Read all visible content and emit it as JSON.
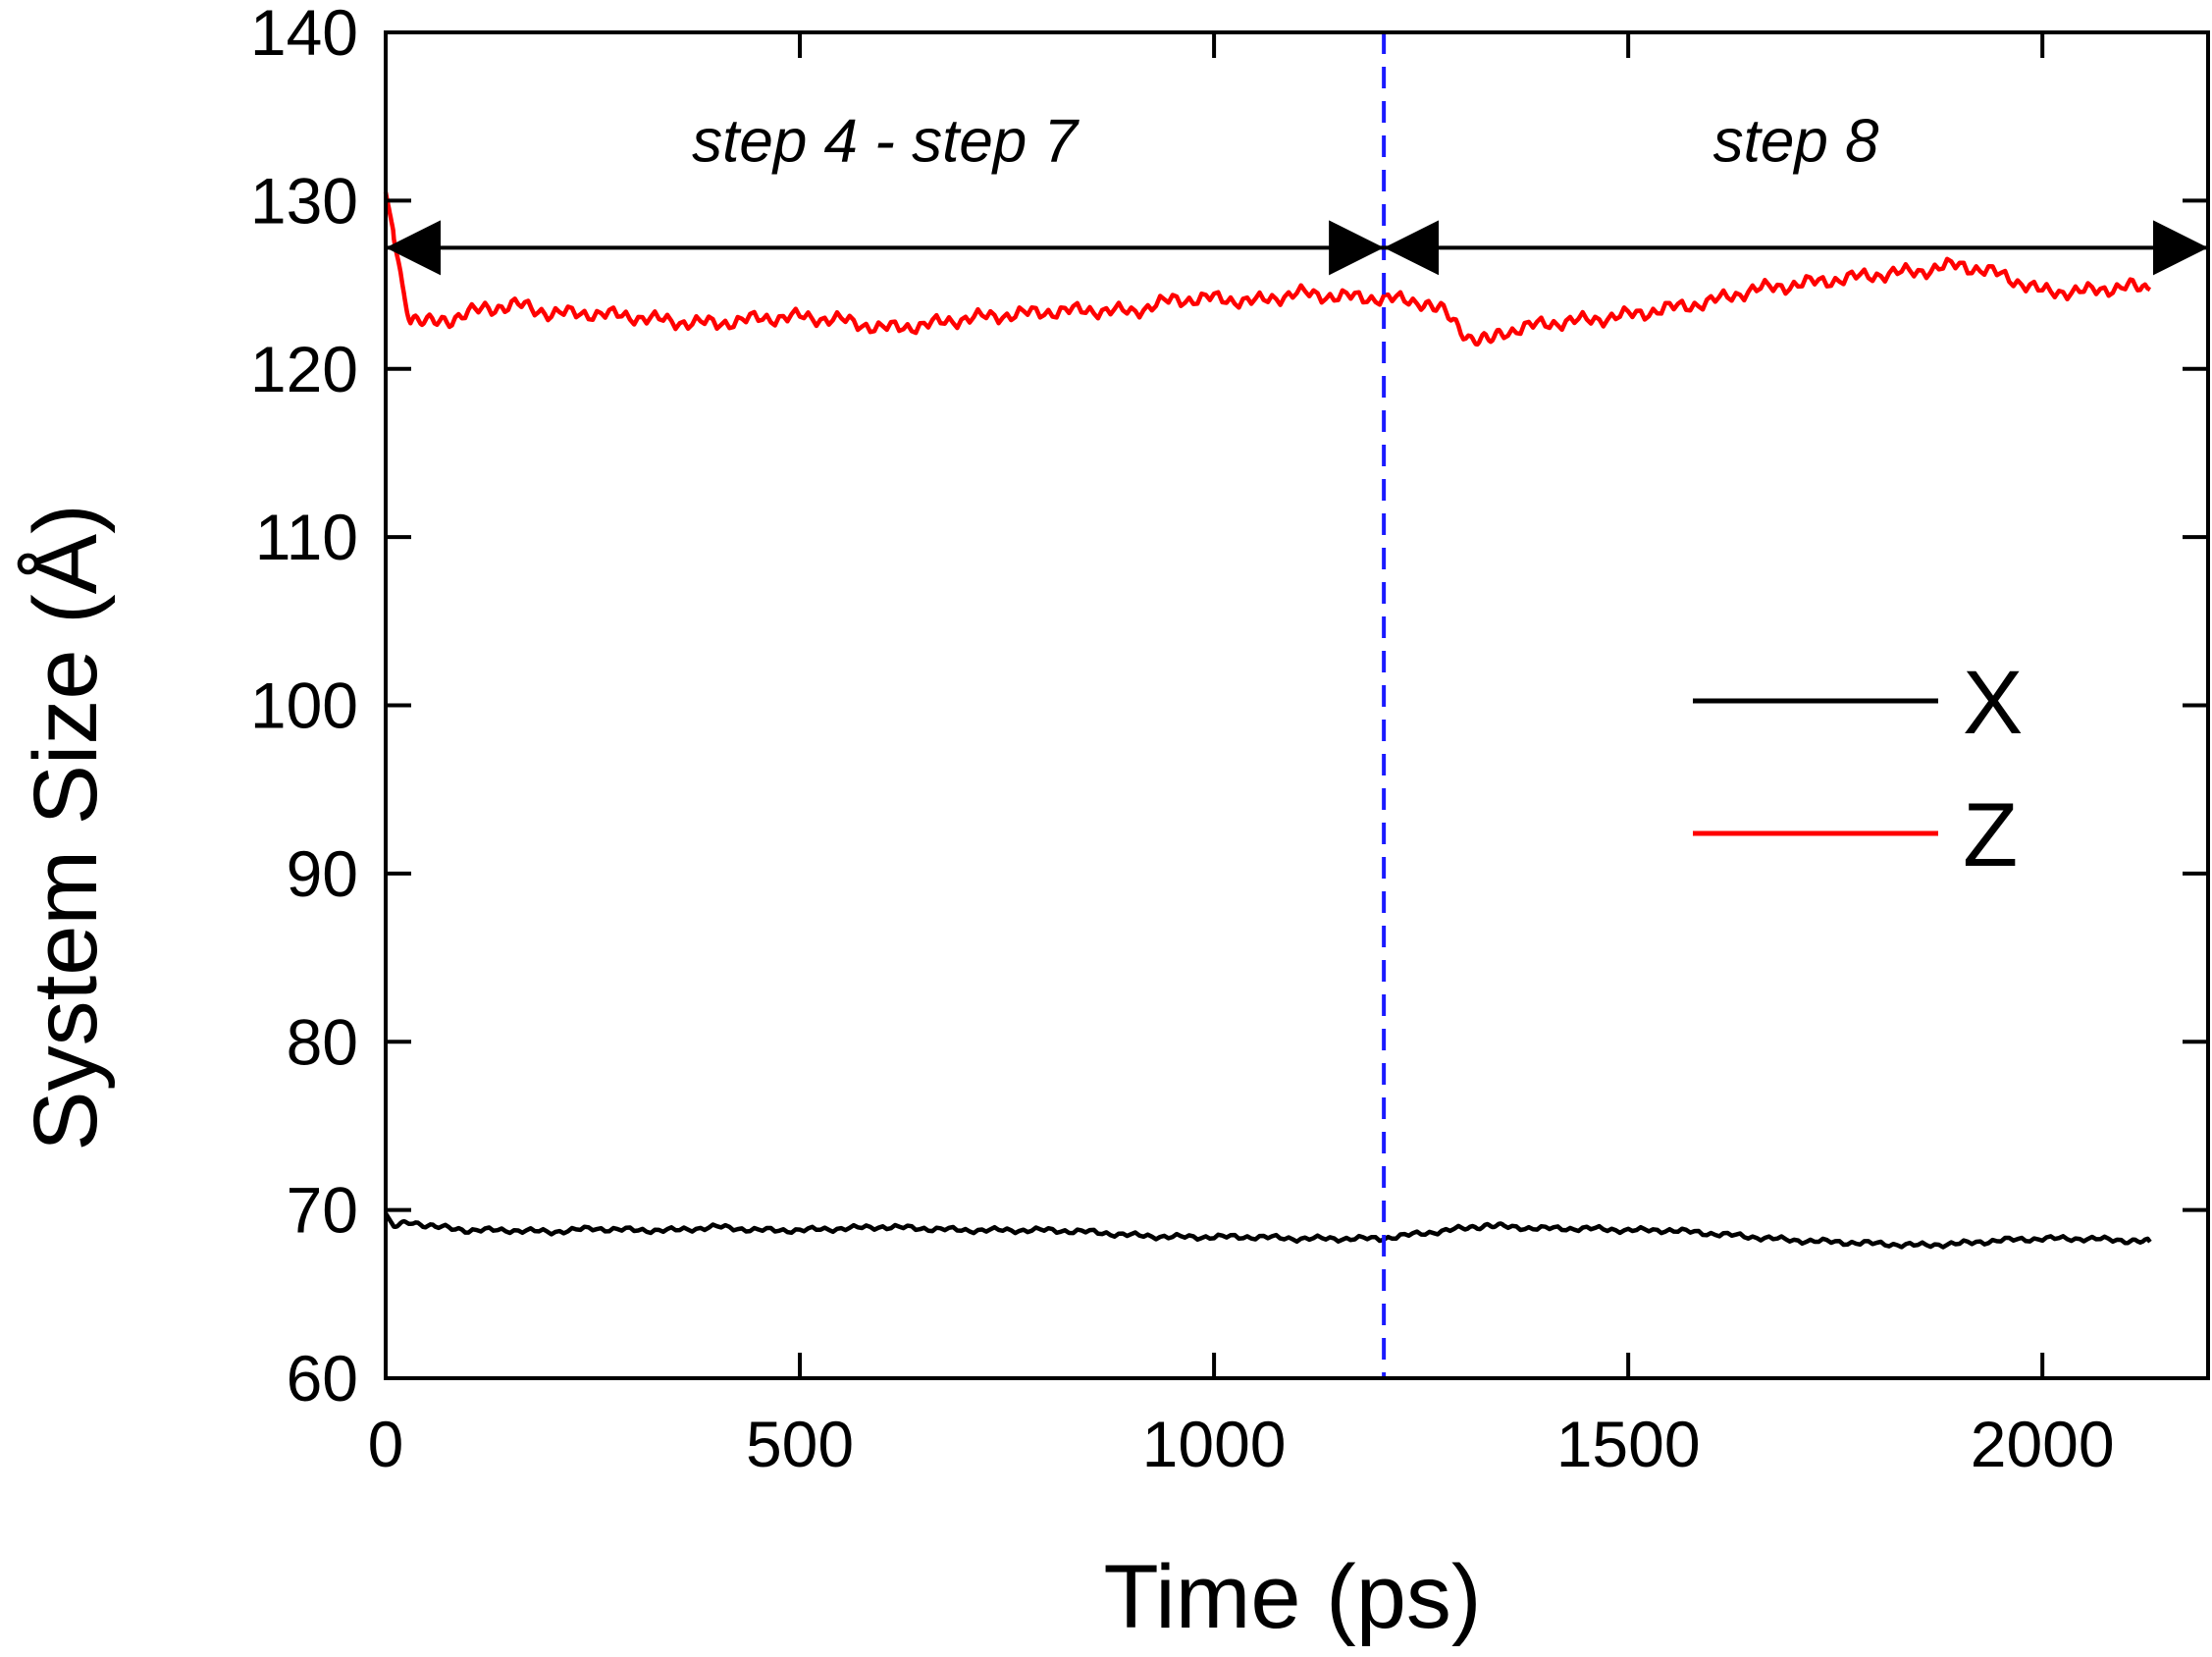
{
  "chart_data": {
    "type": "line",
    "xlabel": "Time (ps)",
    "ylabel": "System Size (Å)",
    "xlim": [
      0,
      2200
    ],
    "ylim": [
      60,
      140
    ],
    "xticks": [
      0,
      500,
      1000,
      1500,
      2000
    ],
    "xtick_labels": [
      "0",
      "500",
      "1000",
      "1500",
      "2000"
    ],
    "yticks": [
      60,
      70,
      80,
      90,
      100,
      110,
      120,
      130,
      140
    ],
    "ytick_labels": [
      "60",
      "70",
      "80",
      "90",
      "100",
      "110",
      "120",
      "130",
      "140"
    ],
    "grid": false,
    "legend_position": "right-middle",
    "series": [
      {
        "name": "X",
        "color": "#000000",
        "points": [
          [
            0,
            69.8
          ],
          [
            10,
            69.0
          ],
          [
            30,
            69.3
          ],
          [
            60,
            69.0
          ],
          [
            100,
            68.8
          ],
          [
            150,
            68.8
          ],
          [
            200,
            68.7
          ],
          [
            250,
            68.9
          ],
          [
            300,
            68.8
          ],
          [
            350,
            68.8
          ],
          [
            400,
            69.0
          ],
          [
            450,
            68.8
          ],
          [
            500,
            68.8
          ],
          [
            550,
            68.9
          ],
          [
            600,
            69.0
          ],
          [
            650,
            68.9
          ],
          [
            700,
            68.8
          ],
          [
            750,
            68.8
          ],
          [
            800,
            68.8
          ],
          [
            850,
            68.7
          ],
          [
            900,
            68.5
          ],
          [
            950,
            68.4
          ],
          [
            1000,
            68.4
          ],
          [
            1050,
            68.4
          ],
          [
            1100,
            68.3
          ],
          [
            1150,
            68.3
          ],
          [
            1200,
            68.3
          ],
          [
            1250,
            68.6
          ],
          [
            1300,
            68.9
          ],
          [
            1330,
            69.1
          ],
          [
            1350,
            69.0
          ],
          [
            1400,
            68.9
          ],
          [
            1450,
            68.9
          ],
          [
            1500,
            68.8
          ],
          [
            1550,
            68.8
          ],
          [
            1600,
            68.6
          ],
          [
            1650,
            68.4
          ],
          [
            1700,
            68.2
          ],
          [
            1750,
            68.1
          ],
          [
            1800,
            68.0
          ],
          [
            1850,
            67.9
          ],
          [
            1900,
            68.0
          ],
          [
            1950,
            68.2
          ],
          [
            2000,
            68.3
          ],
          [
            2050,
            68.3
          ],
          [
            2100,
            68.2
          ],
          [
            2130,
            68.1
          ]
        ]
      },
      {
        "name": "Z",
        "color": "#ff0000",
        "points": [
          [
            0,
            130.5
          ],
          [
            10,
            128.0
          ],
          [
            20,
            125.0
          ],
          [
            30,
            123.0
          ],
          [
            50,
            122.7
          ],
          [
            80,
            123.0
          ],
          [
            120,
            123.6
          ],
          [
            160,
            123.8
          ],
          [
            200,
            123.3
          ],
          [
            250,
            123.3
          ],
          [
            300,
            123.1
          ],
          [
            350,
            122.8
          ],
          [
            400,
            122.7
          ],
          [
            450,
            123.0
          ],
          [
            500,
            123.1
          ],
          [
            550,
            122.9
          ],
          [
            600,
            122.4
          ],
          [
            650,
            122.6
          ],
          [
            700,
            123.0
          ],
          [
            750,
            123.2
          ],
          [
            800,
            123.4
          ],
          [
            850,
            123.5
          ],
          [
            900,
            123.4
          ],
          [
            950,
            124.1
          ],
          [
            1000,
            124.2
          ],
          [
            1050,
            124.0
          ],
          [
            1100,
            124.5
          ],
          [
            1150,
            124.3
          ],
          [
            1200,
            124.2
          ],
          [
            1250,
            124.0
          ],
          [
            1280,
            123.3
          ],
          [
            1310,
            121.8
          ],
          [
            1330,
            121.6
          ],
          [
            1350,
            122.2
          ],
          [
            1400,
            122.7
          ],
          [
            1450,
            122.9
          ],
          [
            1500,
            123.2
          ],
          [
            1550,
            123.6
          ],
          [
            1600,
            124.0
          ],
          [
            1650,
            124.7
          ],
          [
            1700,
            125.0
          ],
          [
            1750,
            125.3
          ],
          [
            1800,
            125.6
          ],
          [
            1850,
            125.8
          ],
          [
            1900,
            126.2
          ],
          [
            1950,
            125.6
          ],
          [
            2000,
            124.6
          ],
          [
            2050,
            124.6
          ],
          [
            2100,
            124.9
          ],
          [
            2130,
            124.7
          ]
        ]
      }
    ],
    "vertical_marker": {
      "x": 1205,
      "color": "#1a1aff",
      "style": "dashed"
    },
    "annotations": [
      {
        "text": "step 4 - step 7",
        "x_range": [
          0,
          1205
        ],
        "y": 127.2
      },
      {
        "text": "step 8",
        "x_range": [
          1205,
          2200
        ],
        "y": 127.2
      }
    ]
  }
}
